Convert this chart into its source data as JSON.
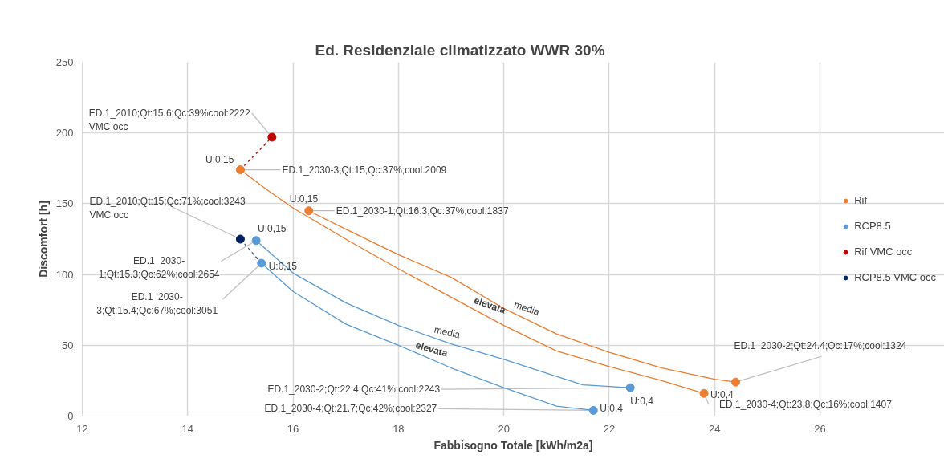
{
  "chart_data": {
    "type": "scatter",
    "title": "Ed. Residenziale climatizzato WWR 30%",
    "xlabel": "Fabbisogno Totale [kWh/m2a]",
    "ylabel": "Discomfort [h]",
    "xlim": [
      12,
      26
    ],
    "xticks": [
      12,
      14,
      16,
      18,
      20,
      22,
      24,
      26
    ],
    "ylim": [
      0,
      250
    ],
    "yticks": [
      0,
      50,
      100,
      150,
      200,
      250
    ],
    "grid": true,
    "legend": "right",
    "marker": "circle",
    "series": [
      {
        "type": "line",
        "marker": "none",
        "color": "#ed7d31",
        "line_style": "solid",
        "x": [
          16.3,
          17,
          18,
          19,
          20,
          21,
          22,
          23,
          24,
          24.4
        ],
        "values": [
          145,
          132,
          114,
          98,
          76,
          58,
          45,
          34,
          26,
          24
        ]
      },
      {
        "type": "line",
        "marker": "none",
        "color": "#ed7d31",
        "line_style": "solid",
        "x": [
          15,
          15.5,
          16,
          17,
          18,
          19,
          20,
          21,
          22,
          23,
          23.8
        ],
        "values": [
          174,
          160,
          147,
          125,
          104,
          84,
          64,
          46,
          35,
          25,
          16
        ]
      },
      {
        "type": "line",
        "marker": "none",
        "color": "#5b9bd5",
        "line_style": "solid",
        "x": [
          15.3,
          16,
          17,
          18,
          19,
          20,
          21,
          21.5,
          22.4
        ],
        "values": [
          124,
          101,
          80,
          64,
          51,
          40,
          28,
          22,
          20
        ]
      },
      {
        "type": "line",
        "marker": "none",
        "color": "#5b9bd5",
        "line_style": "solid",
        "x": [
          15.4,
          16,
          17,
          18,
          19,
          20,
          21,
          21.7
        ],
        "values": [
          108,
          88,
          65,
          50,
          34,
          20,
          7,
          4
        ]
      },
      {
        "type": "line",
        "marker": "none",
        "color": "#c00000",
        "line_style": "dashed",
        "x": [
          15,
          15.6
        ],
        "values": [
          174,
          197
        ]
      },
      {
        "type": "line",
        "marker": "none",
        "color": "#44546a",
        "line_style": "dashed",
        "x": [
          15.4,
          15.0
        ],
        "values": [
          108,
          125
        ]
      },
      {
        "name": "Rif",
        "color": "#ed7d31",
        "x": [
          15,
          16.3,
          24.4,
          23.8
        ],
        "values": [
          174,
          145,
          24,
          16
        ]
      },
      {
        "name": "RCP8.5",
        "color": "#5b9bd5",
        "x": [
          15.3,
          15.4,
          22.4,
          21.7
        ],
        "values": [
          124,
          108,
          20,
          4
        ]
      },
      {
        "name": "Rif VMC occ",
        "color": "#c00000",
        "x": [
          15.6
        ],
        "values": [
          197
        ]
      },
      {
        "name": "RCP8.5 VMC occ",
        "color": "#002060",
        "x": [
          15.0
        ],
        "values": [
          125
        ]
      }
    ],
    "annotations": [
      {
        "text": "U:0,15",
        "x": 15,
        "y": 174
      },
      {
        "text": "ED.1_2030-3;Qt:15;Qc:37%;cool:2009",
        "x": 15,
        "y": 174
      },
      {
        "text": "U:0,15",
        "x": 16.3,
        "y": 145
      },
      {
        "text": "ED.1_2030-1;Qt:16.3;Qc:37%;cool:1837",
        "x": 16.3,
        "y": 145
      },
      {
        "text": "ED.1_2010;Qt:15.6;Qc:39%cool:2222\nVMC occ",
        "x": 15.6,
        "y": 197
      },
      {
        "text": "U:0,15",
        "x": 15.3,
        "y": 124
      },
      {
        "text": "U:0,15",
        "x": 15.4,
        "y": 108
      },
      {
        "text": "ED.1_2010;Qt:15;Qc:71%;cool:3243\nVMC occ",
        "x": 15.0,
        "y": 125
      },
      {
        "text": "ED.1_2030-\n1;Qt:15.3;Qc:62%;cool:2654",
        "x": 15.3,
        "y": 124
      },
      {
        "text": "ED.1_2030-\n3;Qt:15.4;Qc:67%;cool:3051",
        "x": 15.4,
        "y": 108
      },
      {
        "text": "U:0,4",
        "x": 23.8,
        "y": 16
      },
      {
        "text": "ED.1_2030-2;Qt:24.4;Qc:17%;cool:1324",
        "x": 24.4,
        "y": 24
      },
      {
        "text": "ED.1_2030-4;Qt:23.8;Qc:16%;cool:1407",
        "x": 23.8,
        "y": 16
      },
      {
        "text": "U:0,4",
        "x": 22.4,
        "y": 20
      },
      {
        "text": "ED.1_2030-2;Qt:22.4;Qc:41%;cool:2243",
        "x": 22.4,
        "y": 20
      },
      {
        "text": "U:0,4",
        "x": 21.7,
        "y": 4
      },
      {
        "text": "ED.1_2030-4;Qt:21.7;Qc:42%;cool:2327",
        "x": 21.7,
        "y": 4
      },
      {
        "text": "elevata",
        "x": 19.7,
        "y": 70
      },
      {
        "text": "media",
        "x": 20.4,
        "y": 69
      },
      {
        "text": "media",
        "x": 18.9,
        "y": 52
      },
      {
        "text": "elevata",
        "x": 18.6,
        "y": 40
      }
    ]
  }
}
